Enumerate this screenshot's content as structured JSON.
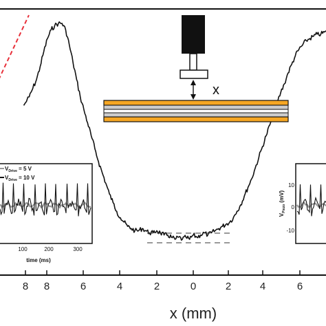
{
  "chart_data": {
    "type": "line",
    "xlabel": "x (mm)",
    "x_tick_labels": [
      "8",
      "8",
      "6",
      "4",
      "2",
      "0",
      "2",
      "4",
      "6"
    ],
    "main_curve": {
      "x": [
        -9.3,
        -9.0,
        -8.8,
        -8.6,
        -8.4,
        -8.2,
        -8.0,
        -7.8,
        -7.6,
        -7.4,
        -7.2,
        -7.0,
        -6.8,
        -6.6,
        -6.4,
        -6.2,
        -6.0,
        -5.8,
        -5.6,
        -5.4,
        -5.2,
        -5.0,
        -4.8,
        -4.6,
        -4.4,
        -4.2,
        -4.0,
        -3.8,
        -3.6,
        -3.4,
        -3.2,
        -3.0,
        -2.8,
        -2.6,
        -2.4,
        -2.2,
        -2.0,
        -1.8,
        -1.6,
        -1.4,
        -1.2,
        -1.0,
        -0.8,
        -0.6,
        -0.4,
        -0.2,
        0.0,
        0.2,
        0.4,
        0.6,
        0.8,
        1.0,
        1.2,
        1.4,
        1.6,
        1.8,
        2.0,
        2.2,
        2.4,
        2.6,
        2.8,
        3.0,
        3.2,
        3.4,
        3.6,
        3.8,
        4.0,
        4.2,
        4.4,
        4.6,
        4.8,
        5.0,
        5.2,
        5.4,
        5.6,
        5.8,
        6.0,
        6.2,
        6.4,
        6.6,
        6.8,
        7.0,
        7.2,
        7.4,
        7.6,
        7.8
      ],
      "y": [
        0.62,
        0.66,
        0.7,
        0.74,
        0.8,
        0.87,
        0.93,
        0.97,
        0.99,
        1.0,
        1.0,
        0.97,
        0.9,
        0.82,
        0.74,
        0.66,
        0.6,
        0.54,
        0.48,
        0.42,
        0.36,
        0.31,
        0.26,
        0.21,
        0.17,
        0.13,
        0.1,
        0.08,
        0.06,
        0.05,
        0.04,
        0.04,
        0.05,
        0.04,
        0.03,
        0.03,
        0.04,
        0.03,
        0.02,
        0.02,
        0.01,
        0.0,
        0.01,
        0.0,
        0.01,
        0.0,
        0.02,
        0.01,
        0.02,
        0.03,
        0.02,
        0.03,
        0.04,
        0.05,
        0.06,
        0.07,
        0.08,
        0.1,
        0.13,
        0.16,
        0.2,
        0.24,
        0.28,
        0.33,
        0.38,
        0.43,
        0.48,
        0.53,
        0.58,
        0.63,
        0.68,
        0.72,
        0.77,
        0.81,
        0.85,
        0.88,
        0.9,
        0.92,
        0.93,
        0.94,
        0.95,
        0.95,
        0.96,
        0.96,
        0.97,
        0.97
      ]
    },
    "legend": [
      {
        "label": "V",
        "subscript": "Drive",
        "value_text": " = 5 V"
      },
      {
        "label": "V",
        "subscript": "Drive",
        "value_text": " = 10 V"
      }
    ],
    "left_inset": {
      "xlabel": "time (ms)",
      "x_tick_labels": [
        "100",
        "200",
        "300"
      ]
    },
    "right_inset": {
      "ylabel": "V",
      "ylabel_subscript": "Piezo",
      "ylabel_unit": " (mV)",
      "y_tick_labels": [
        "10",
        "0",
        "-10"
      ]
    },
    "diagram_label": "x",
    "colors": {
      "curve": "#111111",
      "tangent": "#e8303a",
      "beam_outer": "#f5a623",
      "beam_inner": "#cccccc",
      "sensor": "#111111",
      "signal_gray": "#999999"
    }
  }
}
